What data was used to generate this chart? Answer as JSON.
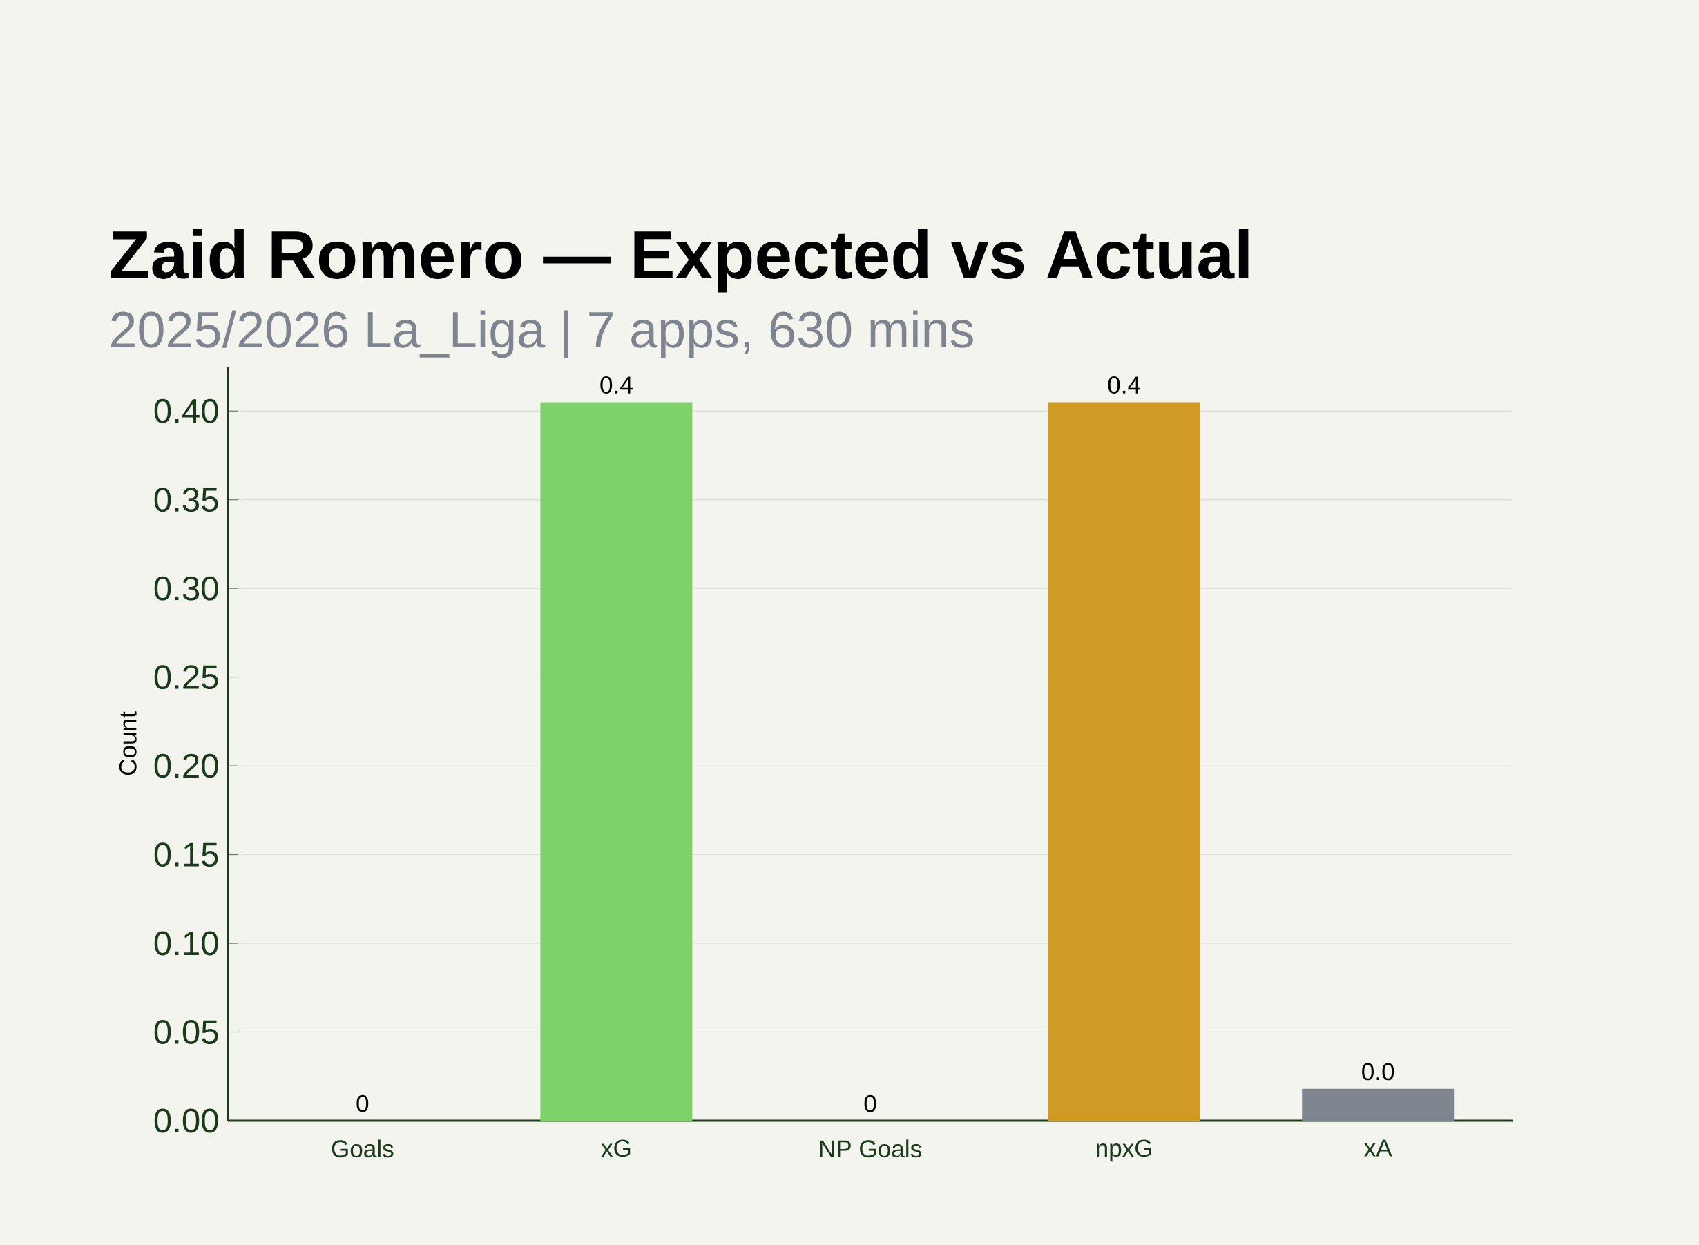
{
  "chart_data": {
    "type": "bar",
    "title": "Zaid Romero — Expected vs Actual",
    "subtitle": "2025/2026 La_Liga | 7 apps, 630 mins",
    "ylabel": "Count",
    "categories": [
      "Goals",
      "xG",
      "NP Goals",
      "npxG",
      "xA"
    ],
    "values": [
      0,
      0.405,
      0,
      0.405,
      0.018
    ],
    "colors": [
      "#7ed267",
      "#7ed267",
      "#d19a24",
      "#d19a24",
      "#80868f"
    ],
    "value_labels": [
      "0",
      "0.4",
      "0",
      "0.4",
      "0.0"
    ],
    "ylim": [
      0,
      0.425
    ],
    "yticks": [
      "0.00",
      "0.05",
      "0.10",
      "0.15",
      "0.20",
      "0.25",
      "0.30",
      "0.35",
      "0.40"
    ],
    "grid": "y"
  }
}
